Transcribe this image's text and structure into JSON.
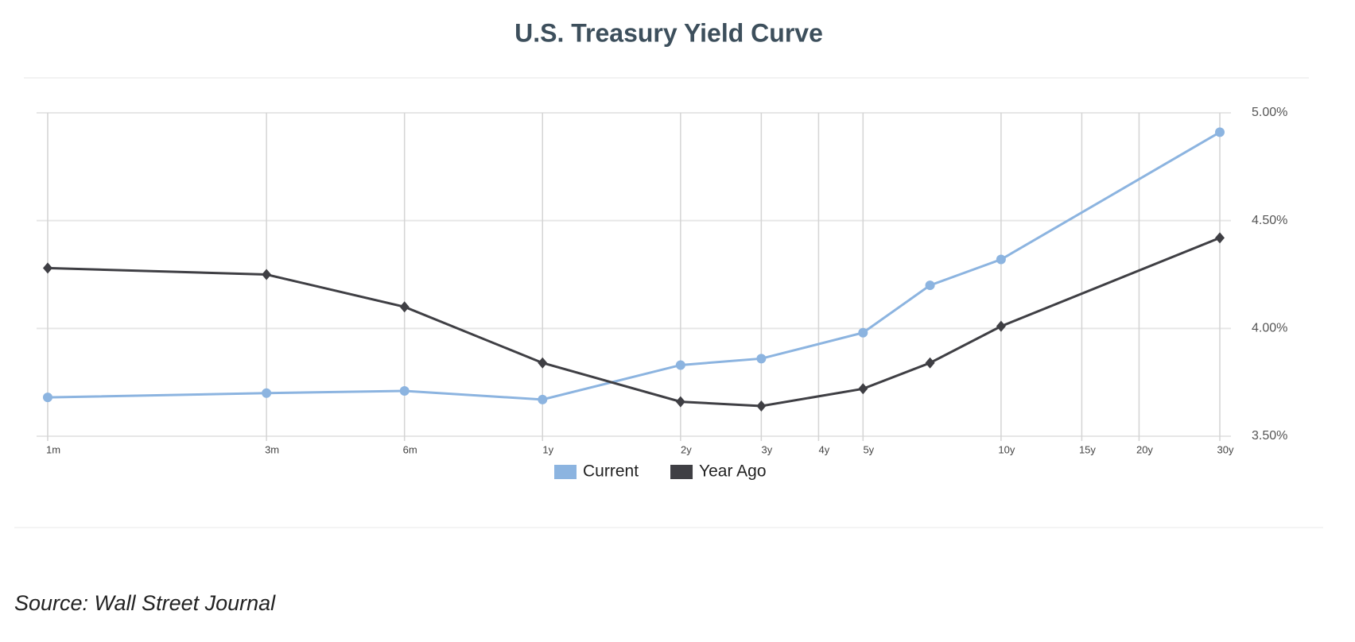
{
  "chart_data": {
    "type": "line",
    "title": "U.S. Treasury Yield Curve",
    "x": [
      1,
      3,
      6,
      12,
      24,
      36,
      60,
      84,
      120,
      360
    ],
    "xscale": "log",
    "xlim": [
      1,
      360
    ],
    "xticks": [
      {
        "value": 1,
        "label": "1m"
      },
      {
        "value": 3,
        "label": "3m"
      },
      {
        "value": 6,
        "label": "6m"
      },
      {
        "value": 12,
        "label": "1y"
      },
      {
        "value": 24,
        "label": "2y"
      },
      {
        "value": 36,
        "label": "3y"
      },
      {
        "value": 48,
        "label": "4y"
      },
      {
        "value": 60,
        "label": "5y"
      },
      {
        "value": 120,
        "label": "10y"
      },
      {
        "value": 180,
        "label": "15y"
      },
      {
        "value": 240,
        "label": "20y"
      },
      {
        "value": 360,
        "label": "30y"
      }
    ],
    "ylim": [
      3.5,
      5.0
    ],
    "yticks": [
      {
        "value": 3.5,
        "label": "3.50%"
      },
      {
        "value": 4.0,
        "label": "4.00%"
      },
      {
        "value": 4.5,
        "label": "4.50%"
      },
      {
        "value": 5.0,
        "label": "5.00%"
      }
    ],
    "grid": true,
    "legend": "bottom",
    "series": [
      {
        "name": "Current",
        "color": "#8cb4e0",
        "marker": "circle",
        "values": [
          3.68,
          3.7,
          3.71,
          3.67,
          3.83,
          3.86,
          3.98,
          4.2,
          4.32,
          4.91
        ]
      },
      {
        "name": "Year Ago",
        "color": "#3f3f44",
        "marker": "diamond",
        "values": [
          4.28,
          4.25,
          4.1,
          3.84,
          3.66,
          3.64,
          3.72,
          3.84,
          4.01,
          4.42
        ]
      }
    ]
  },
  "source": "Source: Wall Street Journal"
}
